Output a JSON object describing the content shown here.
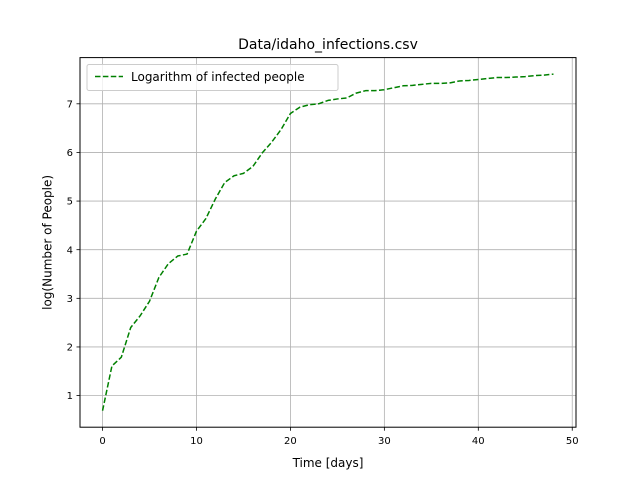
{
  "chart_data": {
    "type": "line",
    "title": "Data/idaho_infections.csv",
    "xlabel": "Time [days]",
    "ylabel": "log(Number of People)",
    "xlim": [
      -2.4,
      50.4
    ],
    "ylim": [
      0.35,
      7.95
    ],
    "xticks": [
      0,
      10,
      20,
      30,
      40,
      50
    ],
    "yticks": [
      1,
      2,
      3,
      4,
      5,
      6,
      7
    ],
    "grid": true,
    "legend_position": "upper-left",
    "series": [
      {
        "name": "Logarithm of infected people",
        "color": "#008000",
        "linestyle": "dashed",
        "x": [
          0,
          1,
          2,
          3,
          4,
          5,
          6,
          7,
          8,
          9,
          10,
          11,
          12,
          13,
          14,
          15,
          16,
          17,
          18,
          19,
          20,
          21,
          22,
          23,
          24,
          25,
          26,
          27,
          28,
          29,
          30,
          31,
          32,
          33,
          34,
          35,
          36,
          37,
          38,
          39,
          40,
          41,
          42,
          43,
          44,
          45,
          46,
          47,
          48
        ],
        "y": [
          0.69,
          1.61,
          1.79,
          2.4,
          2.64,
          2.94,
          3.43,
          3.71,
          3.87,
          3.91,
          4.38,
          4.64,
          5.04,
          5.38,
          5.52,
          5.57,
          5.71,
          5.99,
          6.21,
          6.47,
          6.8,
          6.93,
          6.98,
          7.0,
          7.07,
          7.1,
          7.12,
          7.22,
          7.27,
          7.27,
          7.29,
          7.33,
          7.37,
          7.38,
          7.4,
          7.42,
          7.42,
          7.43,
          7.47,
          7.48,
          7.5,
          7.52,
          7.54,
          7.54,
          7.55,
          7.56,
          7.58,
          7.59,
          7.61
        ]
      }
    ]
  }
}
